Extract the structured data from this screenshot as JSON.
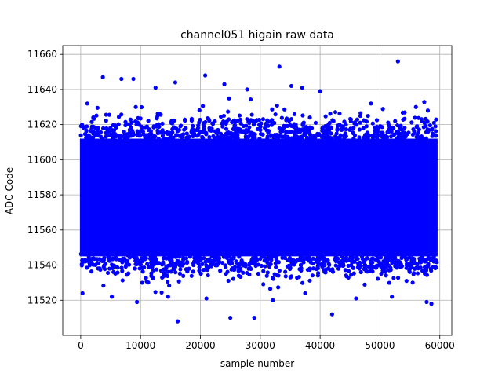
{
  "chart_data": {
    "type": "scatter",
    "title": "channel051 higain raw data",
    "xlabel": "sample number",
    "ylabel": "ADC Code",
    "xlim": [
      -3000,
      62000
    ],
    "ylim": [
      11500,
      11665
    ],
    "xticks": [
      0,
      10000,
      20000,
      30000,
      40000,
      50000,
      60000
    ],
    "yticks": [
      11520,
      11540,
      11560,
      11580,
      11600,
      11620,
      11640,
      11660
    ],
    "xtick_labels": [
      "0",
      "10000",
      "20000",
      "30000",
      "40000",
      "50000",
      "60000"
    ],
    "ytick_labels": [
      "11520",
      "11540",
      "11560",
      "11580",
      "11600",
      "11620",
      "11640",
      "11660"
    ],
    "grid": true,
    "marker_color": "#0000ff",
    "series": [
      {
        "x_range": [
          0,
          59500
        ],
        "core_band": [
          11545,
          11612
        ],
        "sample_count": 59500,
        "outliers": [
          {
            "x": 16200,
            "y": 11508
          },
          {
            "x": 25000,
            "y": 11510
          },
          {
            "x": 29000,
            "y": 11510
          },
          {
            "x": 42000,
            "y": 11512
          },
          {
            "x": 53000,
            "y": 11656
          },
          {
            "x": 33200,
            "y": 11653
          },
          {
            "x": 3700,
            "y": 11647
          },
          {
            "x": 6800,
            "y": 11646
          },
          {
            "x": 8800,
            "y": 11646
          },
          {
            "x": 20800,
            "y": 11648
          },
          {
            "x": 24000,
            "y": 11643
          },
          {
            "x": 12500,
            "y": 11641
          },
          {
            "x": 15800,
            "y": 11644
          },
          {
            "x": 27800,
            "y": 11640
          },
          {
            "x": 37000,
            "y": 11641
          },
          {
            "x": 40000,
            "y": 11639
          },
          {
            "x": 35200,
            "y": 11642
          },
          {
            "x": 1100,
            "y": 11632
          },
          {
            "x": 9200,
            "y": 11630
          },
          {
            "x": 48500,
            "y": 11632
          },
          {
            "x": 56000,
            "y": 11630
          },
          {
            "x": 58000,
            "y": 11628
          },
          {
            "x": 300,
            "y": 11524
          },
          {
            "x": 5200,
            "y": 11522
          },
          {
            "x": 9400,
            "y": 11519
          },
          {
            "x": 14600,
            "y": 11522
          },
          {
            "x": 21000,
            "y": 11521
          },
          {
            "x": 32100,
            "y": 11520
          },
          {
            "x": 46000,
            "y": 11521
          },
          {
            "x": 57800,
            "y": 11519
          },
          {
            "x": 58600,
            "y": 11518
          },
          {
            "x": 37500,
            "y": 11524
          },
          {
            "x": 52000,
            "y": 11522
          }
        ]
      }
    ]
  }
}
